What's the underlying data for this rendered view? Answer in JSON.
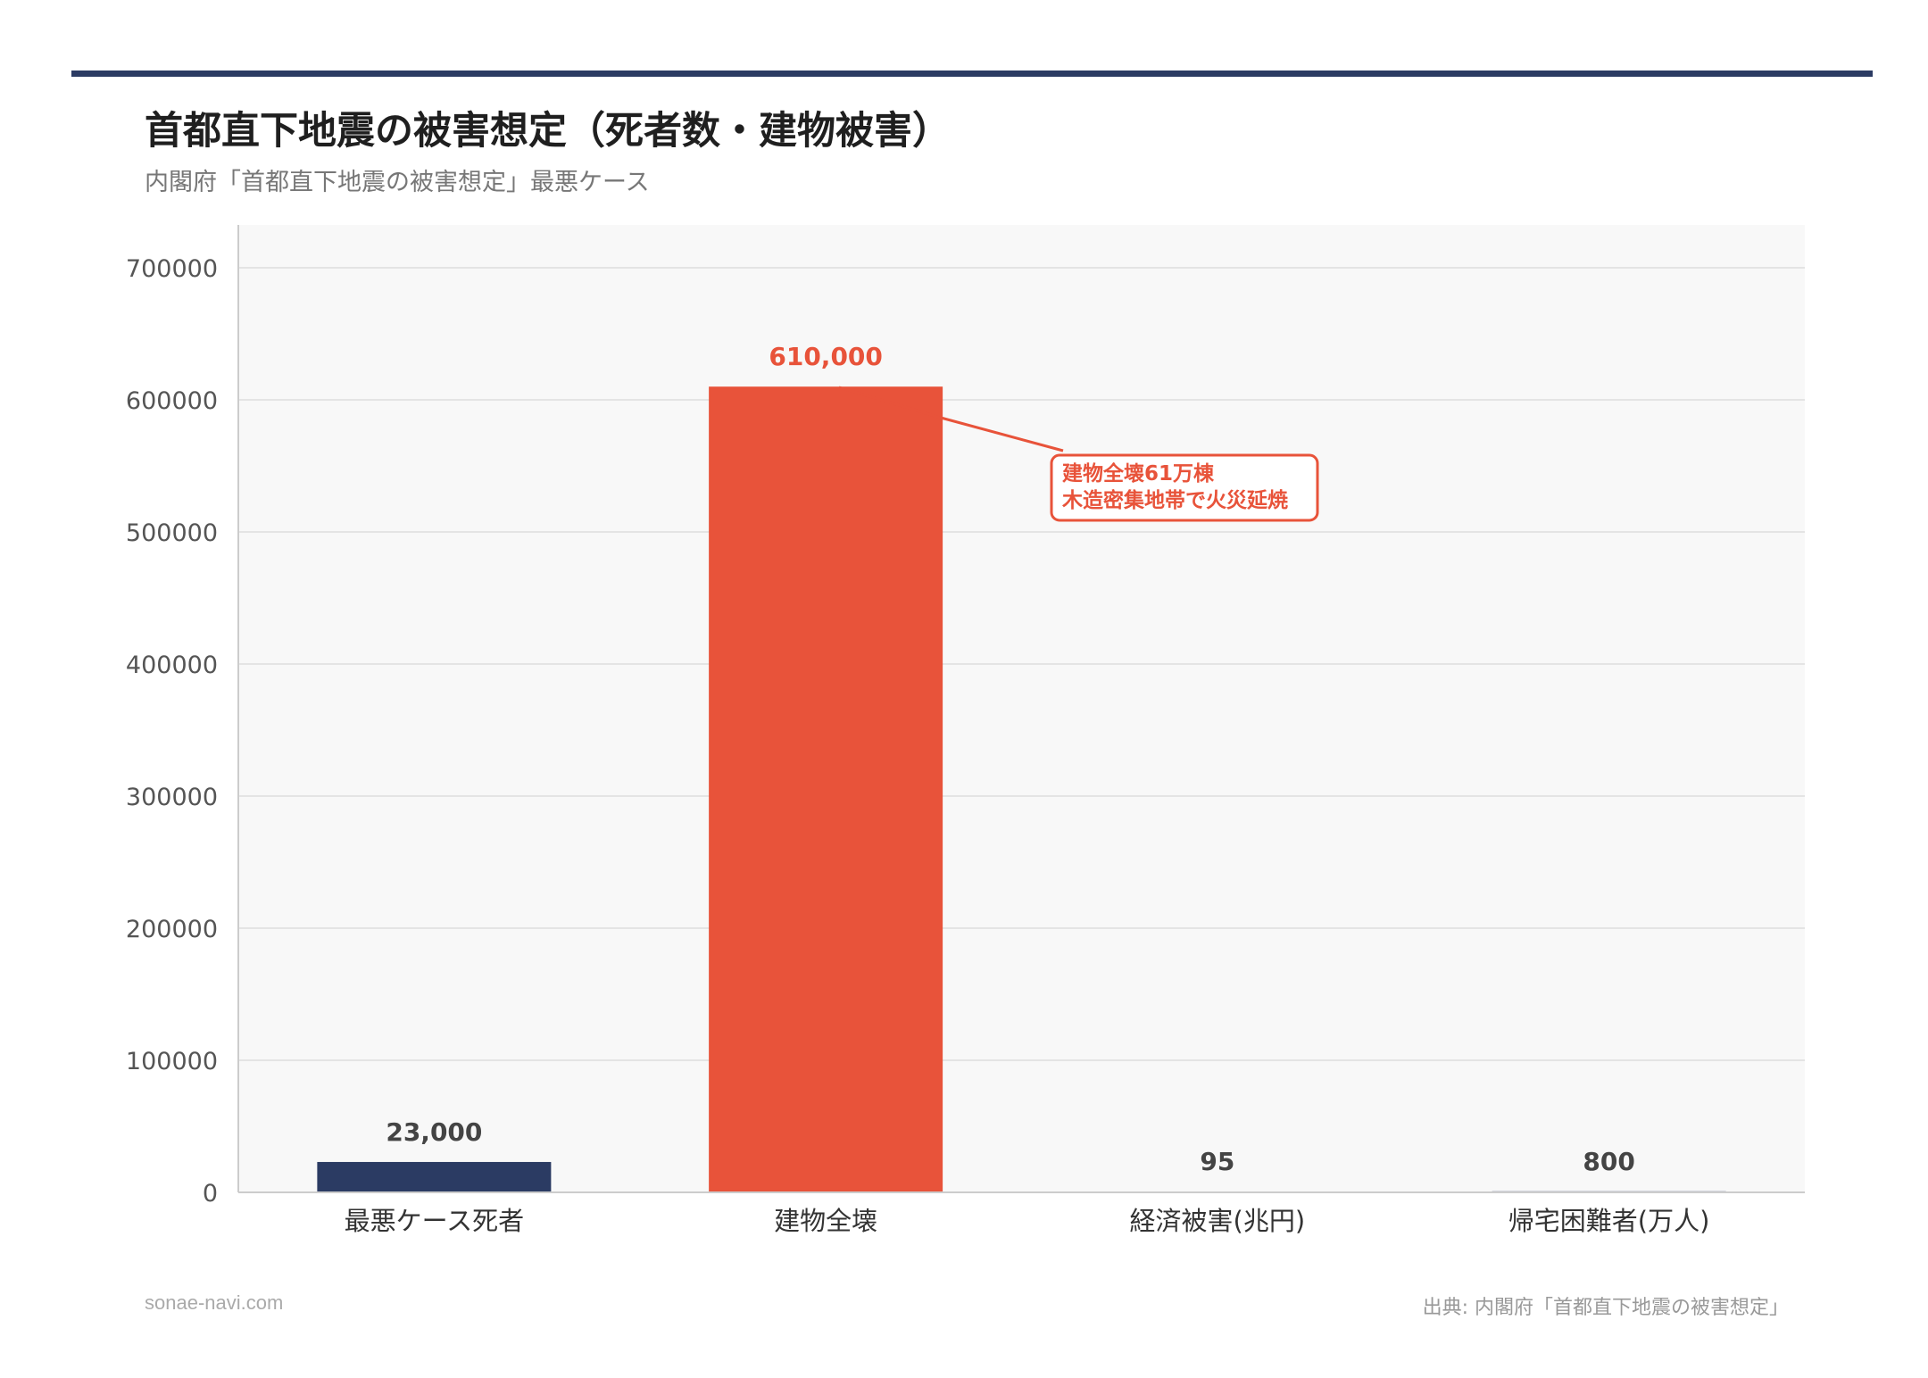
{
  "header": {
    "title": "首都直下地震の被害想定（死者数・建物被害）",
    "subtitle": "内閣府「首都直下地震の被害想定」最悪ケース"
  },
  "chart_data": {
    "type": "bar",
    "categories": [
      "最悪ケース死者",
      "建物全壊",
      "経済被害(兆円)",
      "帰宅困難者(万人)"
    ],
    "values": [
      23000,
      610000,
      95,
      800
    ],
    "value_labels": [
      "23,000",
      "610,000",
      "95",
      "800"
    ],
    "bar_colors": [
      "#2b3b63",
      "#e8533a",
      "#2b3b63",
      "#2b3b63"
    ],
    "label_colors": [
      "#444444",
      "#e8533a",
      "#444444",
      "#444444"
    ],
    "ylim": [
      0,
      700000
    ],
    "yticks": [
      "0",
      "100000",
      "200000",
      "300000",
      "400000",
      "500000",
      "600000",
      "700000"
    ],
    "grid": true,
    "annotation": {
      "target_index": 1,
      "lines": [
        "建物全壊61万棟",
        "木造密集地帯で火災延焼"
      ],
      "color": "#e8533a"
    }
  },
  "footer": {
    "site": "sonae-navi.com",
    "source": "出典: 内閣府「首都直下地震の被害想定」"
  },
  "colors": {
    "accent": "#2b3b63",
    "highlight": "#e8533a",
    "plot_background": "#f8f8f8"
  }
}
